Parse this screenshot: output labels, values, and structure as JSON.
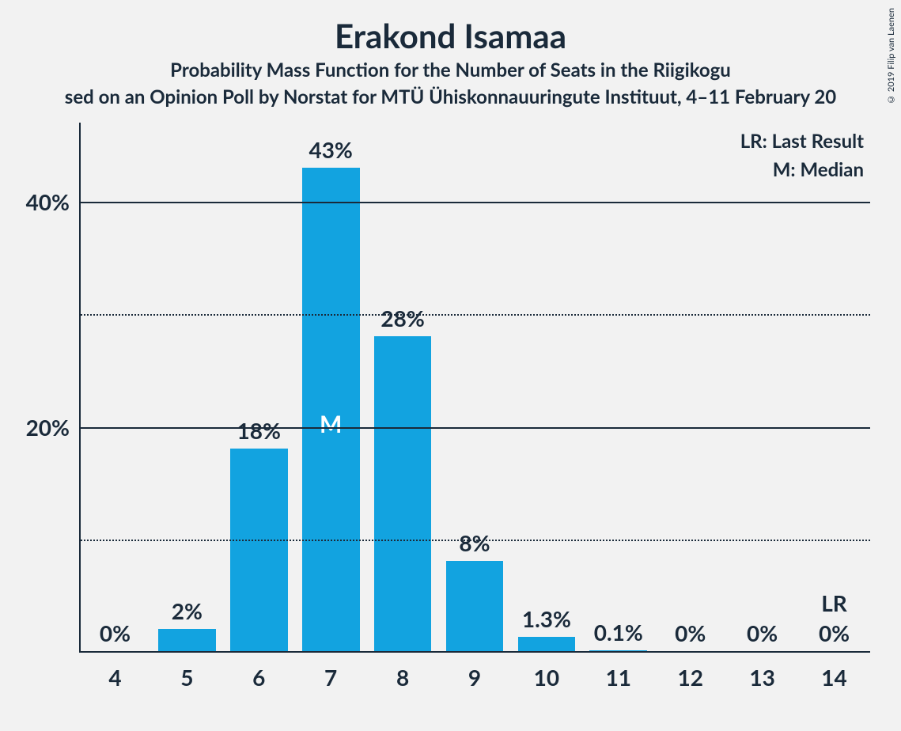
{
  "title": "Erakond Isamaa",
  "subtitle": "Probability Mass Function for the Number of Seats in the Riigikogu",
  "subsubtitle": "sed on an Opinion Poll by Norstat for MTÜ Ühiskonnauuringute Instituut, 4–11 February 20",
  "copyright": "© 2019 Filip van Laenen",
  "chart": {
    "type": "bar",
    "bar_color": "#12a3e0",
    "background_color": "#f2f2f2",
    "axis_color": "#1a2a3a",
    "grid_solid_color": "#1a2a3a",
    "grid_dotted_color": "#1a2a3a",
    "median_text_color": "#ffffff",
    "title_fontsize": 42,
    "subtitle_fontsize": 24,
    "label_fontsize": 28,
    "legend_fontsize": 24,
    "bar_width_ratio": 0.8,
    "ylim": [
      0,
      47
    ],
    "ymajor_ticks": [
      20,
      40
    ],
    "yminor_ticks": [
      10,
      30
    ],
    "ytick_labels": {
      "20": "20%",
      "40": "40%"
    },
    "categories": [
      4,
      5,
      6,
      7,
      8,
      9,
      10,
      11,
      12,
      13,
      14
    ],
    "values": [
      0,
      2,
      18,
      43,
      28,
      8,
      1.3,
      0.1,
      0,
      0,
      0
    ],
    "value_labels": [
      "0%",
      "2%",
      "18%",
      "43%",
      "28%",
      "8%",
      "1.3%",
      "0.1%",
      "0%",
      "0%",
      "0%"
    ],
    "median_index": 3,
    "median_marker": "M",
    "lr_index": 10,
    "lr_marker": "LR",
    "legend": {
      "lr": "LR: Last Result",
      "m": "M: Median"
    }
  }
}
